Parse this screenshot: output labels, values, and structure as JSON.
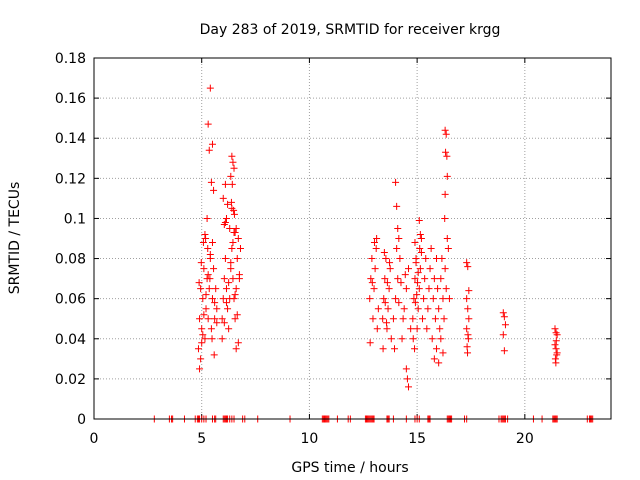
{
  "chart_data": {
    "type": "scatter",
    "title": "Day 283 of 2019, SRMTID for receiver krgg",
    "xlabel": "GPS time / hours",
    "ylabel": "SRMTID / TECUs",
    "xlim": [
      0,
      24
    ],
    "ylim": [
      0,
      0.18
    ],
    "xticks": [
      0,
      5,
      10,
      15,
      20
    ],
    "xtick_labels": [
      "0",
      "5",
      "10",
      "15",
      "20"
    ],
    "yticks": [
      0,
      0.02,
      0.04,
      0.06,
      0.08,
      0.1,
      0.12,
      0.14,
      0.16,
      0.18
    ],
    "ytick_labels": [
      "0",
      "0.02",
      "0.04",
      "0.06",
      "0.08",
      "0.1",
      "0.12",
      "0.14",
      "0.16",
      "0.18"
    ],
    "grid": true,
    "marker": "+",
    "color": "#ff0000",
    "series": [
      {
        "name": "SRMTID",
        "x": [
          4.85,
          4.9,
          4.95,
          5.0,
          5.05,
          5.1,
          5.15,
          5.2,
          5.25,
          5.3,
          5.35,
          5.4,
          5.45,
          5.5,
          5.55,
          5.6,
          5.65,
          5.7,
          4.9,
          4.95,
          5.0,
          5.05,
          5.1,
          5.2,
          5.3,
          5.4,
          5.5,
          5.6,
          5.7,
          4.88,
          4.98,
          5.08,
          5.18,
          5.28,
          5.38,
          5.48,
          5.58,
          5.4,
          5.3,
          5.5,
          5.35,
          5.45,
          5.55,
          5.25,
          5.15,
          5.95,
          6.0,
          6.05,
          6.1,
          6.15,
          6.2,
          6.25,
          6.3,
          6.35,
          6.4,
          6.45,
          6.5,
          6.55,
          6.6,
          6.65,
          6.7,
          6.75,
          6.8,
          5.95,
          6.05,
          6.15,
          6.25,
          6.35,
          6.45,
          6.55,
          6.65,
          6.75,
          6.0,
          6.1,
          6.2,
          6.3,
          6.4,
          6.5,
          6.6,
          6.7,
          6.4,
          6.45,
          6.35,
          6.5,
          6.42,
          6.38,
          6.05,
          6.1,
          6.15,
          6.55,
          6.6,
          6.48,
          6.52,
          12.8,
          12.85,
          12.9,
          12.95,
          13.0,
          13.05,
          13.1,
          13.15,
          13.2,
          12.82,
          12.92,
          13.02,
          13.12,
          13.4,
          13.45,
          13.5,
          13.55,
          13.6,
          13.65,
          13.7,
          13.75,
          13.8,
          13.42,
          13.52,
          13.62,
          13.72,
          13.48,
          13.58,
          13.9,
          14.0,
          14.1,
          14.2,
          14.3,
          14.4,
          14.5,
          14.6,
          14.7,
          13.95,
          14.05,
          14.15,
          14.25,
          14.35,
          14.45,
          14.0,
          14.05,
          14.1,
          14.15,
          14.5,
          14.55,
          14.6,
          14.8,
          14.85,
          14.9,
          14.95,
          15.0,
          15.05,
          15.1,
          15.15,
          15.2,
          14.82,
          14.92,
          15.02,
          15.12,
          14.88,
          14.98,
          15.25,
          15.3,
          15.35,
          15.4,
          15.45,
          15.5,
          15.55,
          15.6,
          15.65,
          15.7,
          15.75,
          15.8,
          15.85,
          15.9,
          15.95,
          16.0,
          16.05,
          16.1,
          16.15,
          16.2,
          16.25,
          16.3,
          16.35,
          16.4,
          16.45,
          16.5,
          15.8,
          15.9,
          16.0,
          16.1,
          16.2,
          16.3,
          16.35,
          16.32,
          16.38,
          16.4,
          16.3,
          16.28,
          15.1,
          15.15,
          15.2,
          14.9,
          14.95,
          15.05,
          17.3,
          17.35,
          17.4,
          17.3,
          17.35,
          17.4,
          17.3,
          17.38,
          17.32,
          17.36,
          17.34,
          19.0,
          19.05,
          19.1,
          19.0,
          19.05,
          21.4,
          21.45,
          21.5,
          21.4,
          21.45,
          21.5,
          21.42,
          21.48,
          21.44,
          21.46
        ],
        "y": [
          0.035,
          0.05,
          0.065,
          0.045,
          0.06,
          0.075,
          0.04,
          0.055,
          0.07,
          0.05,
          0.065,
          0.08,
          0.045,
          0.06,
          0.075,
          0.05,
          0.065,
          0.055,
          0.025,
          0.03,
          0.038,
          0.042,
          0.052,
          0.062,
          0.072,
          0.082,
          0.088,
          0.058,
          0.048,
          0.068,
          0.078,
          0.088,
          0.09,
          0.085,
          0.07,
          0.04,
          0.032,
          0.165,
          0.147,
          0.137,
          0.134,
          0.118,
          0.114,
          0.1,
          0.092,
          0.05,
          0.06,
          0.07,
          0.08,
          0.065,
          0.055,
          0.045,
          0.06,
          0.075,
          0.085,
          0.07,
          0.06,
          0.05,
          0.065,
          0.08,
          0.09,
          0.07,
          0.085,
          0.04,
          0.048,
          0.058,
          0.068,
          0.078,
          0.088,
          0.062,
          0.052,
          0.072,
          0.11,
          0.117,
          0.107,
          0.095,
          0.105,
          0.093,
          0.035,
          0.038,
          0.131,
          0.128,
          0.121,
          0.125,
          0.117,
          0.108,
          0.097,
          0.098,
          0.1,
          0.093,
          0.095,
          0.104,
          0.102,
          0.06,
          0.07,
          0.08,
          0.05,
          0.065,
          0.075,
          0.085,
          0.045,
          0.055,
          0.038,
          0.068,
          0.088,
          0.09,
          0.05,
          0.06,
          0.07,
          0.08,
          0.045,
          0.055,
          0.065,
          0.075,
          0.04,
          0.035,
          0.058,
          0.068,
          0.078,
          0.083,
          0.048,
          0.05,
          0.06,
          0.07,
          0.08,
          0.04,
          0.055,
          0.065,
          0.075,
          0.045,
          0.035,
          0.085,
          0.058,
          0.068,
          0.05,
          0.072,
          0.118,
          0.106,
          0.095,
          0.09,
          0.025,
          0.02,
          0.016,
          0.05,
          0.06,
          0.07,
          0.08,
          0.045,
          0.055,
          0.065,
          0.075,
          0.09,
          0.04,
          0.058,
          0.068,
          0.085,
          0.035,
          0.062,
          0.05,
          0.06,
          0.07,
          0.08,
          0.045,
          0.055,
          0.065,
          0.075,
          0.085,
          0.04,
          0.06,
          0.07,
          0.05,
          0.08,
          0.065,
          0.055,
          0.045,
          0.07,
          0.08,
          0.06,
          0.05,
          0.075,
          0.065,
          0.09,
          0.085,
          0.06,
          0.03,
          0.035,
          0.028,
          0.04,
          0.033,
          0.144,
          0.142,
          0.133,
          0.131,
          0.121,
          0.112,
          0.1,
          0.099,
          0.092,
          0.083,
          0.088,
          0.078,
          0.073,
          0.078,
          0.076,
          0.064,
          0.06,
          0.055,
          0.05,
          0.045,
          0.04,
          0.036,
          0.042,
          0.033,
          0.053,
          0.051,
          0.047,
          0.042,
          0.034,
          0.045,
          0.043,
          0.042,
          0.037,
          0.035,
          0.033,
          0.03,
          0.032,
          0.028,
          0.039
        ]
      }
    ],
    "zero_line_x": [
      2.8,
      3.5,
      3.6,
      3.65,
      4.2,
      4.7,
      4.8,
      4.85,
      4.9,
      5.0,
      5.1,
      5.2,
      5.5,
      5.6,
      5.65,
      6.0,
      6.05,
      6.1,
      6.15,
      6.2,
      6.3,
      6.4,
      6.5,
      6.9,
      7.0,
      7.6,
      9.1,
      10.6,
      10.65,
      10.7,
      10.75,
      10.8,
      10.85,
      10.9,
      11.3,
      11.8,
      11.9,
      12.6,
      12.65,
      12.7,
      12.75,
      12.8,
      12.85,
      12.9,
      12.95,
      13.0,
      13.6,
      13.65,
      13.7,
      13.9,
      14.5,
      14.9,
      15.0,
      15.1,
      15.5,
      15.55,
      15.6,
      16.4,
      16.45,
      16.5,
      16.55,
      16.6,
      17.2,
      17.3,
      18.8,
      18.9,
      18.95,
      19.0,
      19.05,
      19.1,
      19.2,
      20.4,
      20.8,
      21.3,
      21.35,
      21.4,
      21.45,
      21.5,
      22.9,
      23.0,
      23.05,
      23.1,
      23.15
    ]
  }
}
